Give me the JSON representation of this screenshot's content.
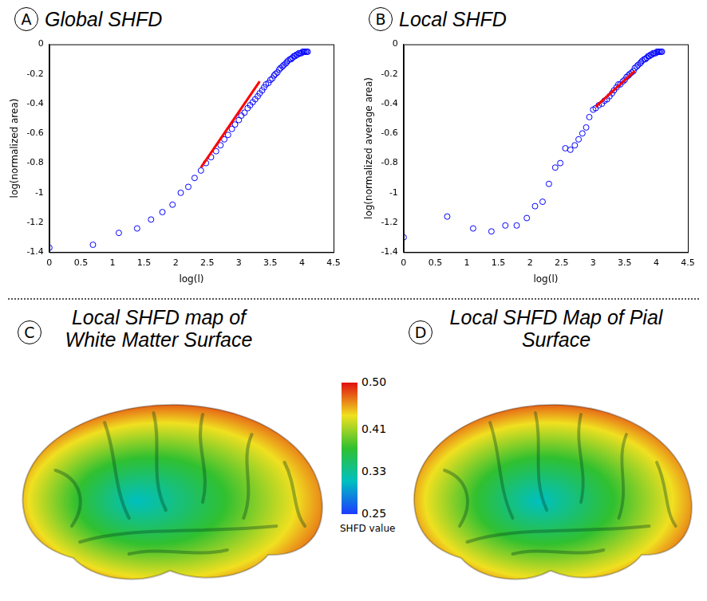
{
  "chart_data": [
    {
      "type": "scatter",
      "panel": "A",
      "title": "Global SHFD",
      "xlabel": "log(l)",
      "ylabel": "log(normalized area)",
      "xlim": [
        0,
        4.5
      ],
      "xticks": [
        0,
        0.5,
        1,
        1.5,
        2,
        2.5,
        3,
        3.5,
        4,
        4.5
      ],
      "ylim": [
        -1.4,
        0
      ],
      "yticks": [
        -1.4,
        -1.2,
        -1,
        -0.8,
        -0.6,
        -0.4,
        -0.2,
        0
      ],
      "grid": false,
      "series": [
        {
          "type": "scatter",
          "color": "#0000ff",
          "marker": "open_circle",
          "x": [
            0,
            0.69,
            1.1,
            1.39,
            1.61,
            1.79,
            1.95,
            2.08,
            2.2,
            2.3,
            2.4,
            2.48,
            2.56,
            2.64,
            2.71,
            2.77,
            2.83,
            2.89,
            2.94,
            3,
            3.04,
            3.09,
            3.14,
            3.18,
            3.22,
            3.26,
            3.3,
            3.33,
            3.37,
            3.4,
            3.43,
            3.47,
            3.5,
            3.53,
            3.56,
            3.58,
            3.61,
            3.64,
            3.66,
            3.69,
            3.71,
            3.74,
            3.76,
            3.78,
            3.81,
            3.83,
            3.85,
            3.87,
            3.89,
            3.91,
            3.93,
            3.95,
            3.97,
            3.99,
            4.01,
            4.03,
            4.04,
            4.06,
            4.08,
            4.09
          ],
          "values": [
            -1.37,
            -1.35,
            -1.27,
            -1.24,
            -1.18,
            -1.13,
            -1.08,
            -1,
            -0.96,
            -0.9,
            -0.85,
            -0.8,
            -0.76,
            -0.72,
            -0.68,
            -0.64,
            -0.61,
            -0.57,
            -0.54,
            -0.51,
            -0.48,
            -0.46,
            -0.43,
            -0.41,
            -0.39,
            -0.37,
            -0.35,
            -0.33,
            -0.31,
            -0.29,
            -0.27,
            -0.26,
            -0.24,
            -0.23,
            -0.21,
            -0.2,
            -0.19,
            -0.17,
            -0.16,
            -0.15,
            -0.14,
            -0.13,
            -0.12,
            -0.11,
            -0.1,
            -0.1,
            -0.09,
            -0.08,
            -0.08,
            -0.07,
            -0.07,
            -0.06,
            -0.06,
            -0.06,
            -0.05,
            -0.05,
            -0.05,
            -0.05,
            -0.05,
            -0.05
          ]
        },
        {
          "type": "line",
          "color": "#ff0000",
          "line_style": "solid",
          "x": [
            2.4,
            3.33
          ],
          "values": [
            -0.83,
            -0.25
          ]
        }
      ]
    },
    {
      "type": "scatter",
      "panel": "B",
      "title": "Local SHFD",
      "xlabel": "log(l)",
      "ylabel": "log(normalized average area)",
      "xlim": [
        0,
        4.5
      ],
      "xticks": [
        0,
        0.5,
        1,
        1.5,
        2,
        2.5,
        3,
        3.5,
        4,
        4.5
      ],
      "ylim": [
        -1.4,
        0
      ],
      "yticks": [
        -1.4,
        -1.2,
        -1,
        -0.8,
        -0.6,
        -0.4,
        -0.2,
        0
      ],
      "grid": false,
      "series": [
        {
          "type": "scatter",
          "color": "#0000ff",
          "marker": "open_circle",
          "x": [
            0,
            0.69,
            1.1,
            1.39,
            1.61,
            1.79,
            1.95,
            2.08,
            2.2,
            2.3,
            2.4,
            2.48,
            2.56,
            2.64,
            2.71,
            2.77,
            2.83,
            2.89,
            2.94,
            3,
            3.04,
            3.09,
            3.14,
            3.18,
            3.22,
            3.26,
            3.3,
            3.33,
            3.37,
            3.4,
            3.43,
            3.47,
            3.5,
            3.53,
            3.56,
            3.58,
            3.61,
            3.64,
            3.66,
            3.69,
            3.71,
            3.74,
            3.76,
            3.78,
            3.81,
            3.83,
            3.85,
            3.87,
            3.89,
            3.91,
            3.93,
            3.95,
            3.97,
            3.99,
            4.01,
            4.03,
            4.04,
            4.06,
            4.08,
            4.09
          ],
          "values": [
            -1.3,
            -1.16,
            -1.24,
            -1.26,
            -1.22,
            -1.22,
            -1.17,
            -1.09,
            -1.06,
            -0.94,
            -0.83,
            -0.8,
            -0.7,
            -0.71,
            -0.68,
            -0.64,
            -0.6,
            -0.56,
            -0.49,
            -0.44,
            -0.43,
            -0.41,
            -0.4,
            -0.38,
            -0.37,
            -0.35,
            -0.33,
            -0.31,
            -0.29,
            -0.27,
            -0.27,
            -0.25,
            -0.24,
            -0.22,
            -0.21,
            -0.2,
            -0.19,
            -0.18,
            -0.16,
            -0.15,
            -0.14,
            -0.13,
            -0.12,
            -0.11,
            -0.1,
            -0.1,
            -0.09,
            -0.08,
            -0.08,
            -0.07,
            -0.07,
            -0.06,
            -0.06,
            -0.06,
            -0.05,
            -0.05,
            -0.05,
            -0.05,
            -0.05,
            -0.05
          ]
        },
        {
          "type": "line",
          "color": "#ff0000",
          "line_style": "solid",
          "x": [
            3.04,
            3.66
          ],
          "values": [
            -0.42,
            -0.18
          ]
        }
      ]
    }
  ],
  "surface_maps": [
    {
      "panel": "C",
      "title": "Local SHFD map of White Matter Surface"
    },
    {
      "panel": "D",
      "title": "Local SHFD Map of Pial Surface"
    }
  ],
  "colorbar": {
    "label": "SHFD value",
    "range": [
      0.25,
      0.5
    ],
    "ticks": [
      {
        "value": 0.5,
        "label": "0.50"
      },
      0.41,
      0.33,
      0.25
    ],
    "colors": [
      "#1e3cff",
      "#00c0c0",
      "#30c030",
      "#f0e020",
      "#e01010"
    ]
  }
}
